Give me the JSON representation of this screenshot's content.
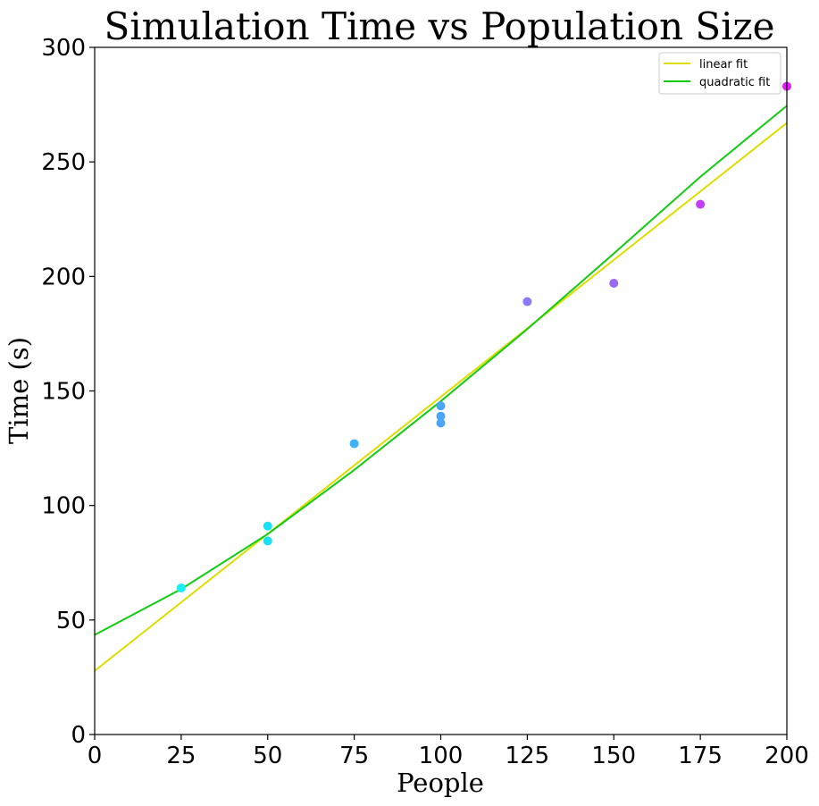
{
  "chart_data": {
    "type": "scatter",
    "title": "Simulation Time vs Population Size",
    "xlabel": "People",
    "ylabel": "Time (s)",
    "xlim": [
      0,
      200
    ],
    "ylim": [
      0,
      300
    ],
    "xticks": [
      "0",
      "25",
      "50",
      "75",
      "100",
      "125",
      "150",
      "175",
      "200"
    ],
    "yticks": [
      "0",
      "50",
      "100",
      "150",
      "200",
      "250",
      "300"
    ],
    "grid": false,
    "legend_position": "top-right",
    "points": [
      {
        "x": 25,
        "y": 64,
        "color": "#19f0f0"
      },
      {
        "x": 50,
        "y": 91,
        "color": "#1ae0f5"
      },
      {
        "x": 50,
        "y": 84.5,
        "color": "#1ae0f5"
      },
      {
        "x": 75,
        "y": 127,
        "color": "#3fb3f7"
      },
      {
        "x": 100,
        "y": 143.5,
        "color": "#4aa5f6"
      },
      {
        "x": 100,
        "y": 139,
        "color": "#4aa5f6"
      },
      {
        "x": 100,
        "y": 136,
        "color": "#4aa5f6"
      },
      {
        "x": 125,
        "y": 189,
        "color": "#8a7cf5"
      },
      {
        "x": 150,
        "y": 197,
        "color": "#9a67f6"
      },
      {
        "x": 175,
        "y": 231.5,
        "color": "#c23ff6"
      },
      {
        "x": 200,
        "y": 283,
        "color": "#e21af5"
      }
    ],
    "series": [
      {
        "name": "linear fit",
        "color": "#dddd00",
        "x": [
          0,
          200
        ],
        "y": [
          27.8,
          267
        ]
      },
      {
        "name": "quadratic fit",
        "color": "#11cc11",
        "x": [
          0,
          25,
          50,
          75,
          100,
          125,
          150,
          175,
          200
        ],
        "y": [
          43.5,
          63.5,
          87.5,
          115.5,
          145.5,
          177.0,
          210.0,
          243.5,
          274.5
        ]
      }
    ]
  }
}
